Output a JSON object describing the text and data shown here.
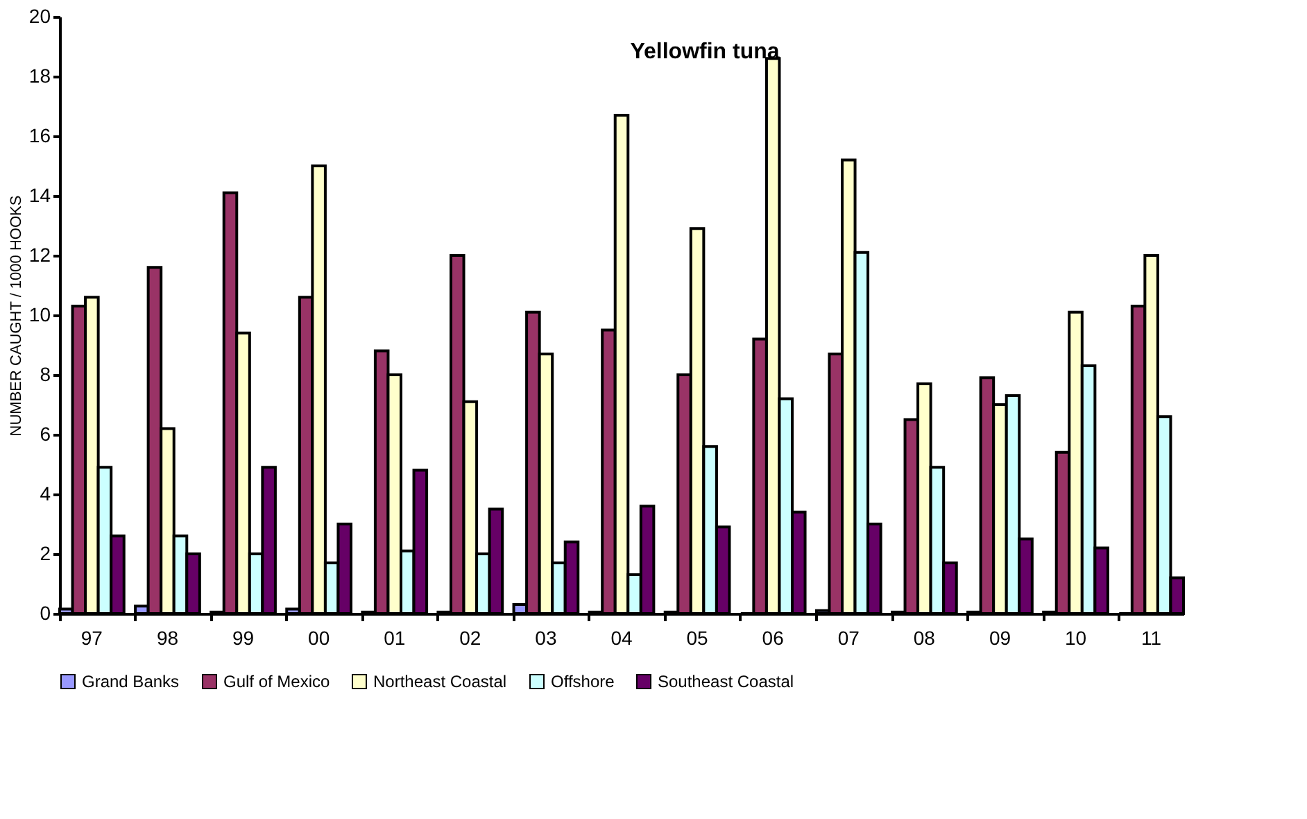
{
  "chart_data": {
    "type": "bar",
    "title": "Yellowfin tuna",
    "ylabel": "NUMBER CAUGHT / 1000 HOOKS",
    "categories": [
      "97",
      "98",
      "99",
      "00",
      "01",
      "02",
      "03",
      "04",
      "05",
      "06",
      "07",
      "08",
      "09",
      "10",
      "11"
    ],
    "series": [
      {
        "name": "Grand Banks",
        "color": "#9999ff",
        "values": [
          0.15,
          0.25,
          0.05,
          0.15,
          0.05,
          0.05,
          0.3,
          0.05,
          0.05,
          0,
          0.1,
          0.05,
          0.05,
          0.05,
          0
        ]
      },
      {
        "name": "Gulf of Mexico",
        "color": "#993366",
        "values": [
          10.3,
          11.6,
          14.1,
          10.6,
          8.8,
          12.0,
          10.1,
          9.5,
          8.0,
          9.2,
          8.7,
          6.5,
          7.9,
          5.4,
          10.3
        ]
      },
      {
        "name": "Northeast Coastal",
        "color": "#ffffcc",
        "values": [
          10.6,
          6.2,
          9.4,
          15.0,
          8.0,
          7.1,
          8.7,
          16.7,
          12.9,
          18.6,
          15.2,
          7.7,
          7.0,
          10.1,
          12.0
        ]
      },
      {
        "name": "Offshore",
        "color": "#ccffff",
        "values": [
          4.9,
          2.6,
          2.0,
          1.7,
          2.1,
          2.0,
          1.7,
          1.3,
          5.6,
          7.2,
          12.1,
          4.9,
          7.3,
          8.3,
          6.6
        ]
      },
      {
        "name": "Southeast Coastal",
        "color": "#660066",
        "values": [
          2.6,
          2.0,
          4.9,
          3.0,
          4.8,
          3.5,
          2.4,
          3.6,
          2.9,
          3.4,
          3.0,
          1.7,
          2.5,
          2.2,
          1.2
        ]
      }
    ],
    "ylim": [
      0,
      20
    ],
    "yticks": [
      0,
      2,
      4,
      6,
      8,
      10,
      12,
      14,
      16,
      18,
      20
    ],
    "grid": false,
    "legend": "bottom"
  }
}
